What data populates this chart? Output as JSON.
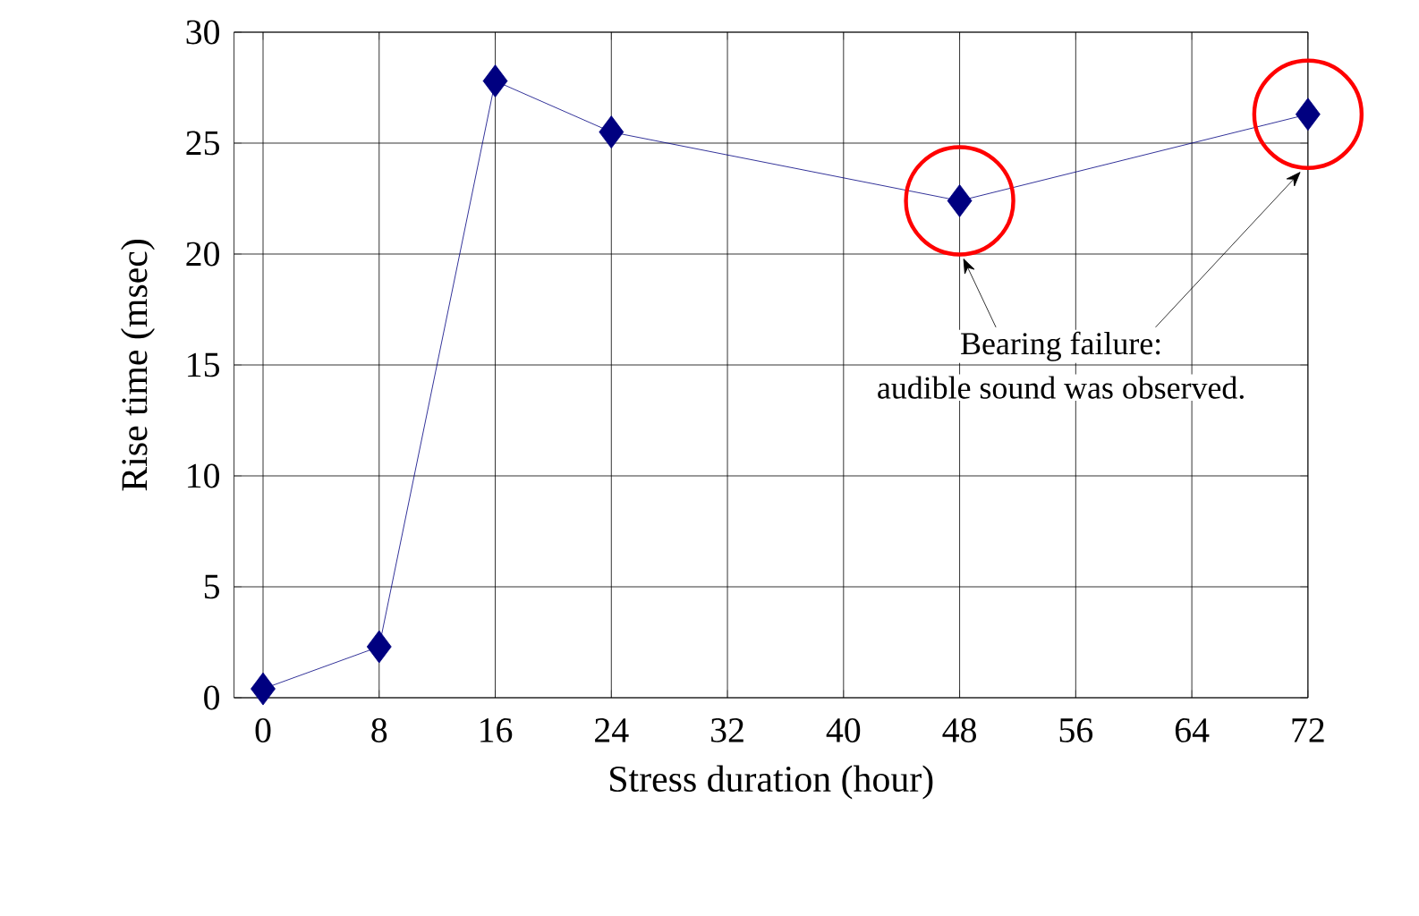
{
  "chart_data": {
    "type": "line",
    "xlabel": "Stress duration (hour)",
    "ylabel": "Rise time (msec)",
    "x": [
      0,
      8,
      16,
      24,
      48,
      72
    ],
    "series": [
      {
        "color": "#000080",
        "values": [
          0.4,
          2.3,
          27.8,
          25.5,
          22.4,
          26.3
        ]
      }
    ],
    "xlim": [
      -2,
      72
    ],
    "xticks": [
      0,
      8,
      16,
      24,
      32,
      40,
      48,
      56,
      64,
      72
    ],
    "ylim": [
      0,
      30
    ],
    "yticks": [
      0,
      5,
      10,
      15,
      20,
      25,
      30
    ],
    "grid": true,
    "marker": "diamond",
    "line_style": "solid",
    "annotations": [
      "Bearing failure:",
      "audible sound was observed."
    ]
  }
}
